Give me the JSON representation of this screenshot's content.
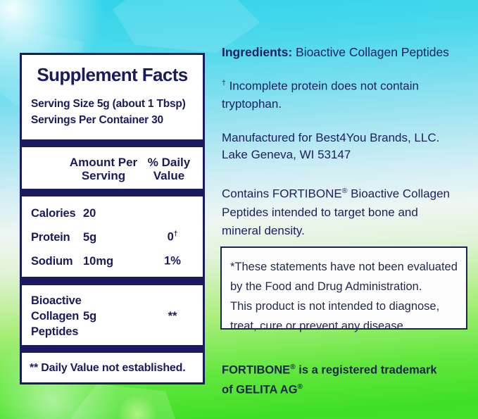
{
  "colors": {
    "navy": "#1a1a5e",
    "cyan_top": "#2dd3e9",
    "green_bottom": "#3fdf26",
    "panel_bg": "#ffffff"
  },
  "supplement_panel": {
    "title": "Supplement Facts",
    "serving_size": "Serving Size 5g (about 1 Tbsp)",
    "servings_per_container": "Servings Per Container 30",
    "columns": {
      "amount": "Amount Per\nServing",
      "daily_value": "% Daily\nValue"
    },
    "rows": [
      {
        "label": "Calories",
        "amount": "20",
        "dv": "",
        "dv_sup": ""
      },
      {
        "label": "Protein",
        "amount": "5g",
        "dv": "0",
        "dv_sup": "†"
      },
      {
        "label": "Sodium",
        "amount": "10mg",
        "dv": "1%",
        "dv_sup": ""
      }
    ],
    "collagen_row": {
      "label": "Bioactive\nCollagen\nPeptides",
      "amount": "5g",
      "dv": "**"
    },
    "footnote": "** Daily Value not established."
  },
  "info_column": {
    "ingredients_label": "Ingredients:",
    "ingredients_value": " Bioactive Collagen Peptides",
    "incomplete_protein_symbol": "†",
    "incomplete_protein_note": " Incomplete protein does not contain\ntryptophan.",
    "manufactured": "Manufactured for Best4You Brands, LLC.\nLake Geneva, WI 53147",
    "contains_pre": "Contains FORTIBONE",
    "registered_mark": "®",
    "contains_post": " Bioactive Collagen\nPeptides intended to target bone and\nmineral density.",
    "disclaimer": "*These statements have not been evaluated\nby the Food and Drug Administration.\nThis product is not intended to diagnose,\ntreat, cure or prevent any disease.",
    "trademark_name": "FORTIBONE",
    "trademark_text": " is a registered trademark\nof GELITA AG"
  }
}
